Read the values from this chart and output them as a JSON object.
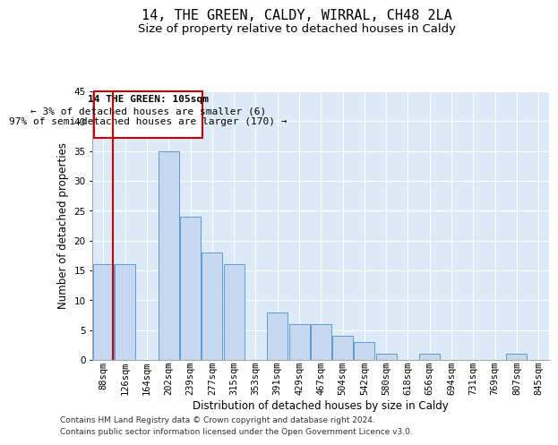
{
  "title": "14, THE GREEN, CALDY, WIRRAL, CH48 2LA",
  "subtitle": "Size of property relative to detached houses in Caldy",
  "xlabel": "Distribution of detached houses by size in Caldy",
  "ylabel": "Number of detached properties",
  "footnote1": "Contains HM Land Registry data © Crown copyright and database right 2024.",
  "footnote2": "Contains public sector information licensed under the Open Government Licence v3.0.",
  "annotation_line1": "14 THE GREEN: 105sqm",
  "annotation_line2": "← 3% of detached houses are smaller (6)",
  "annotation_line3": "97% of semi-detached houses are larger (170) →",
  "bar_color": "#c5d8f0",
  "bar_edge_color": "#5b9bd5",
  "annotation_box_color": "#cc0000",
  "background_color": "#dce9f7",
  "categories": [
    "88sqm",
    "126sqm",
    "164sqm",
    "202sqm",
    "239sqm",
    "277sqm",
    "315sqm",
    "353sqm",
    "391sqm",
    "429sqm",
    "467sqm",
    "504sqm",
    "542sqm",
    "580sqm",
    "618sqm",
    "656sqm",
    "694sqm",
    "731sqm",
    "769sqm",
    "807sqm",
    "845sqm"
  ],
  "values": [
    16,
    16,
    0,
    35,
    24,
    18,
    16,
    0,
    8,
    6,
    6,
    4,
    3,
    1,
    0,
    1,
    0,
    0,
    0,
    1,
    0
  ],
  "ylim": [
    0,
    45
  ],
  "yticks": [
    0,
    5,
    10,
    15,
    20,
    25,
    30,
    35,
    40,
    45
  ],
  "title_fontsize": 11,
  "subtitle_fontsize": 9.5,
  "axis_fontsize": 8.5,
  "tick_fontsize": 7.5,
  "annotation_fontsize": 8,
  "footnote_fontsize": 6.5
}
